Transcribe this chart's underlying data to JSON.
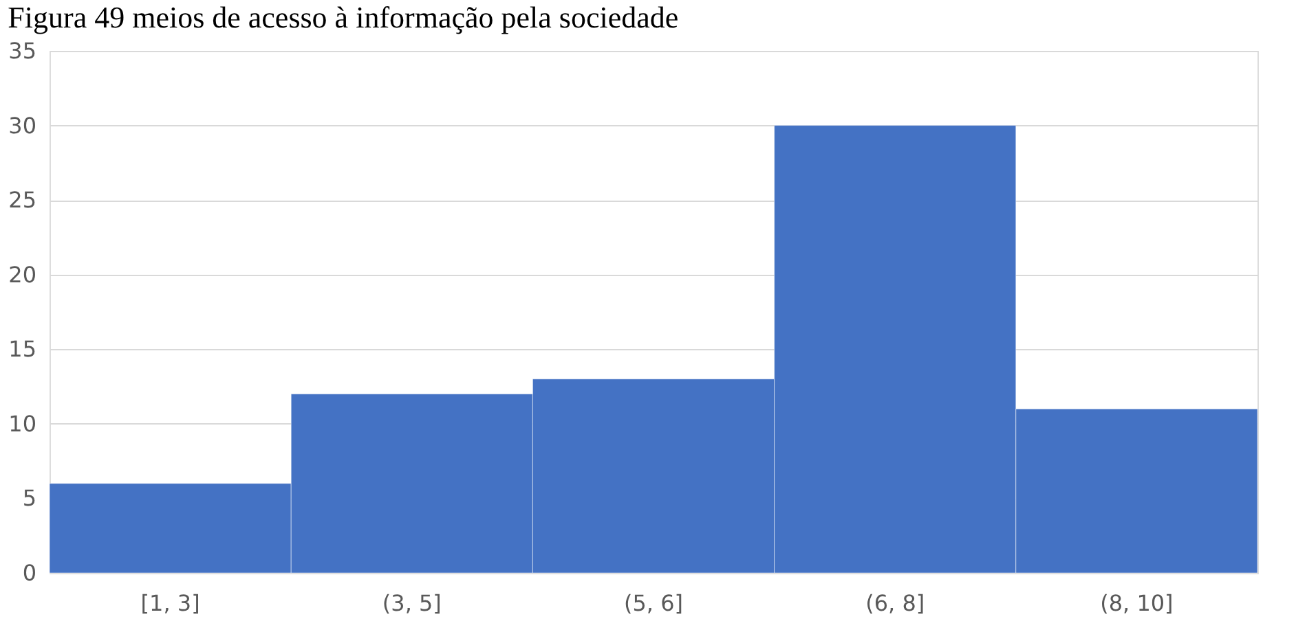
{
  "chart_data": {
    "type": "bar",
    "title": "Figura 49 meios de acesso à informação pela sociedade",
    "categories": [
      "[1, 3]",
      "(3, 5]",
      "(5, 6]",
      "(6, 8]",
      "(8, 10]"
    ],
    "values": [
      6,
      12,
      13,
      30,
      11
    ],
    "color": "#4472c4",
    "ylim": [
      0,
      35
    ],
    "yticks": [
      0,
      5,
      10,
      15,
      20,
      25,
      30,
      35
    ],
    "grid": "y"
  }
}
